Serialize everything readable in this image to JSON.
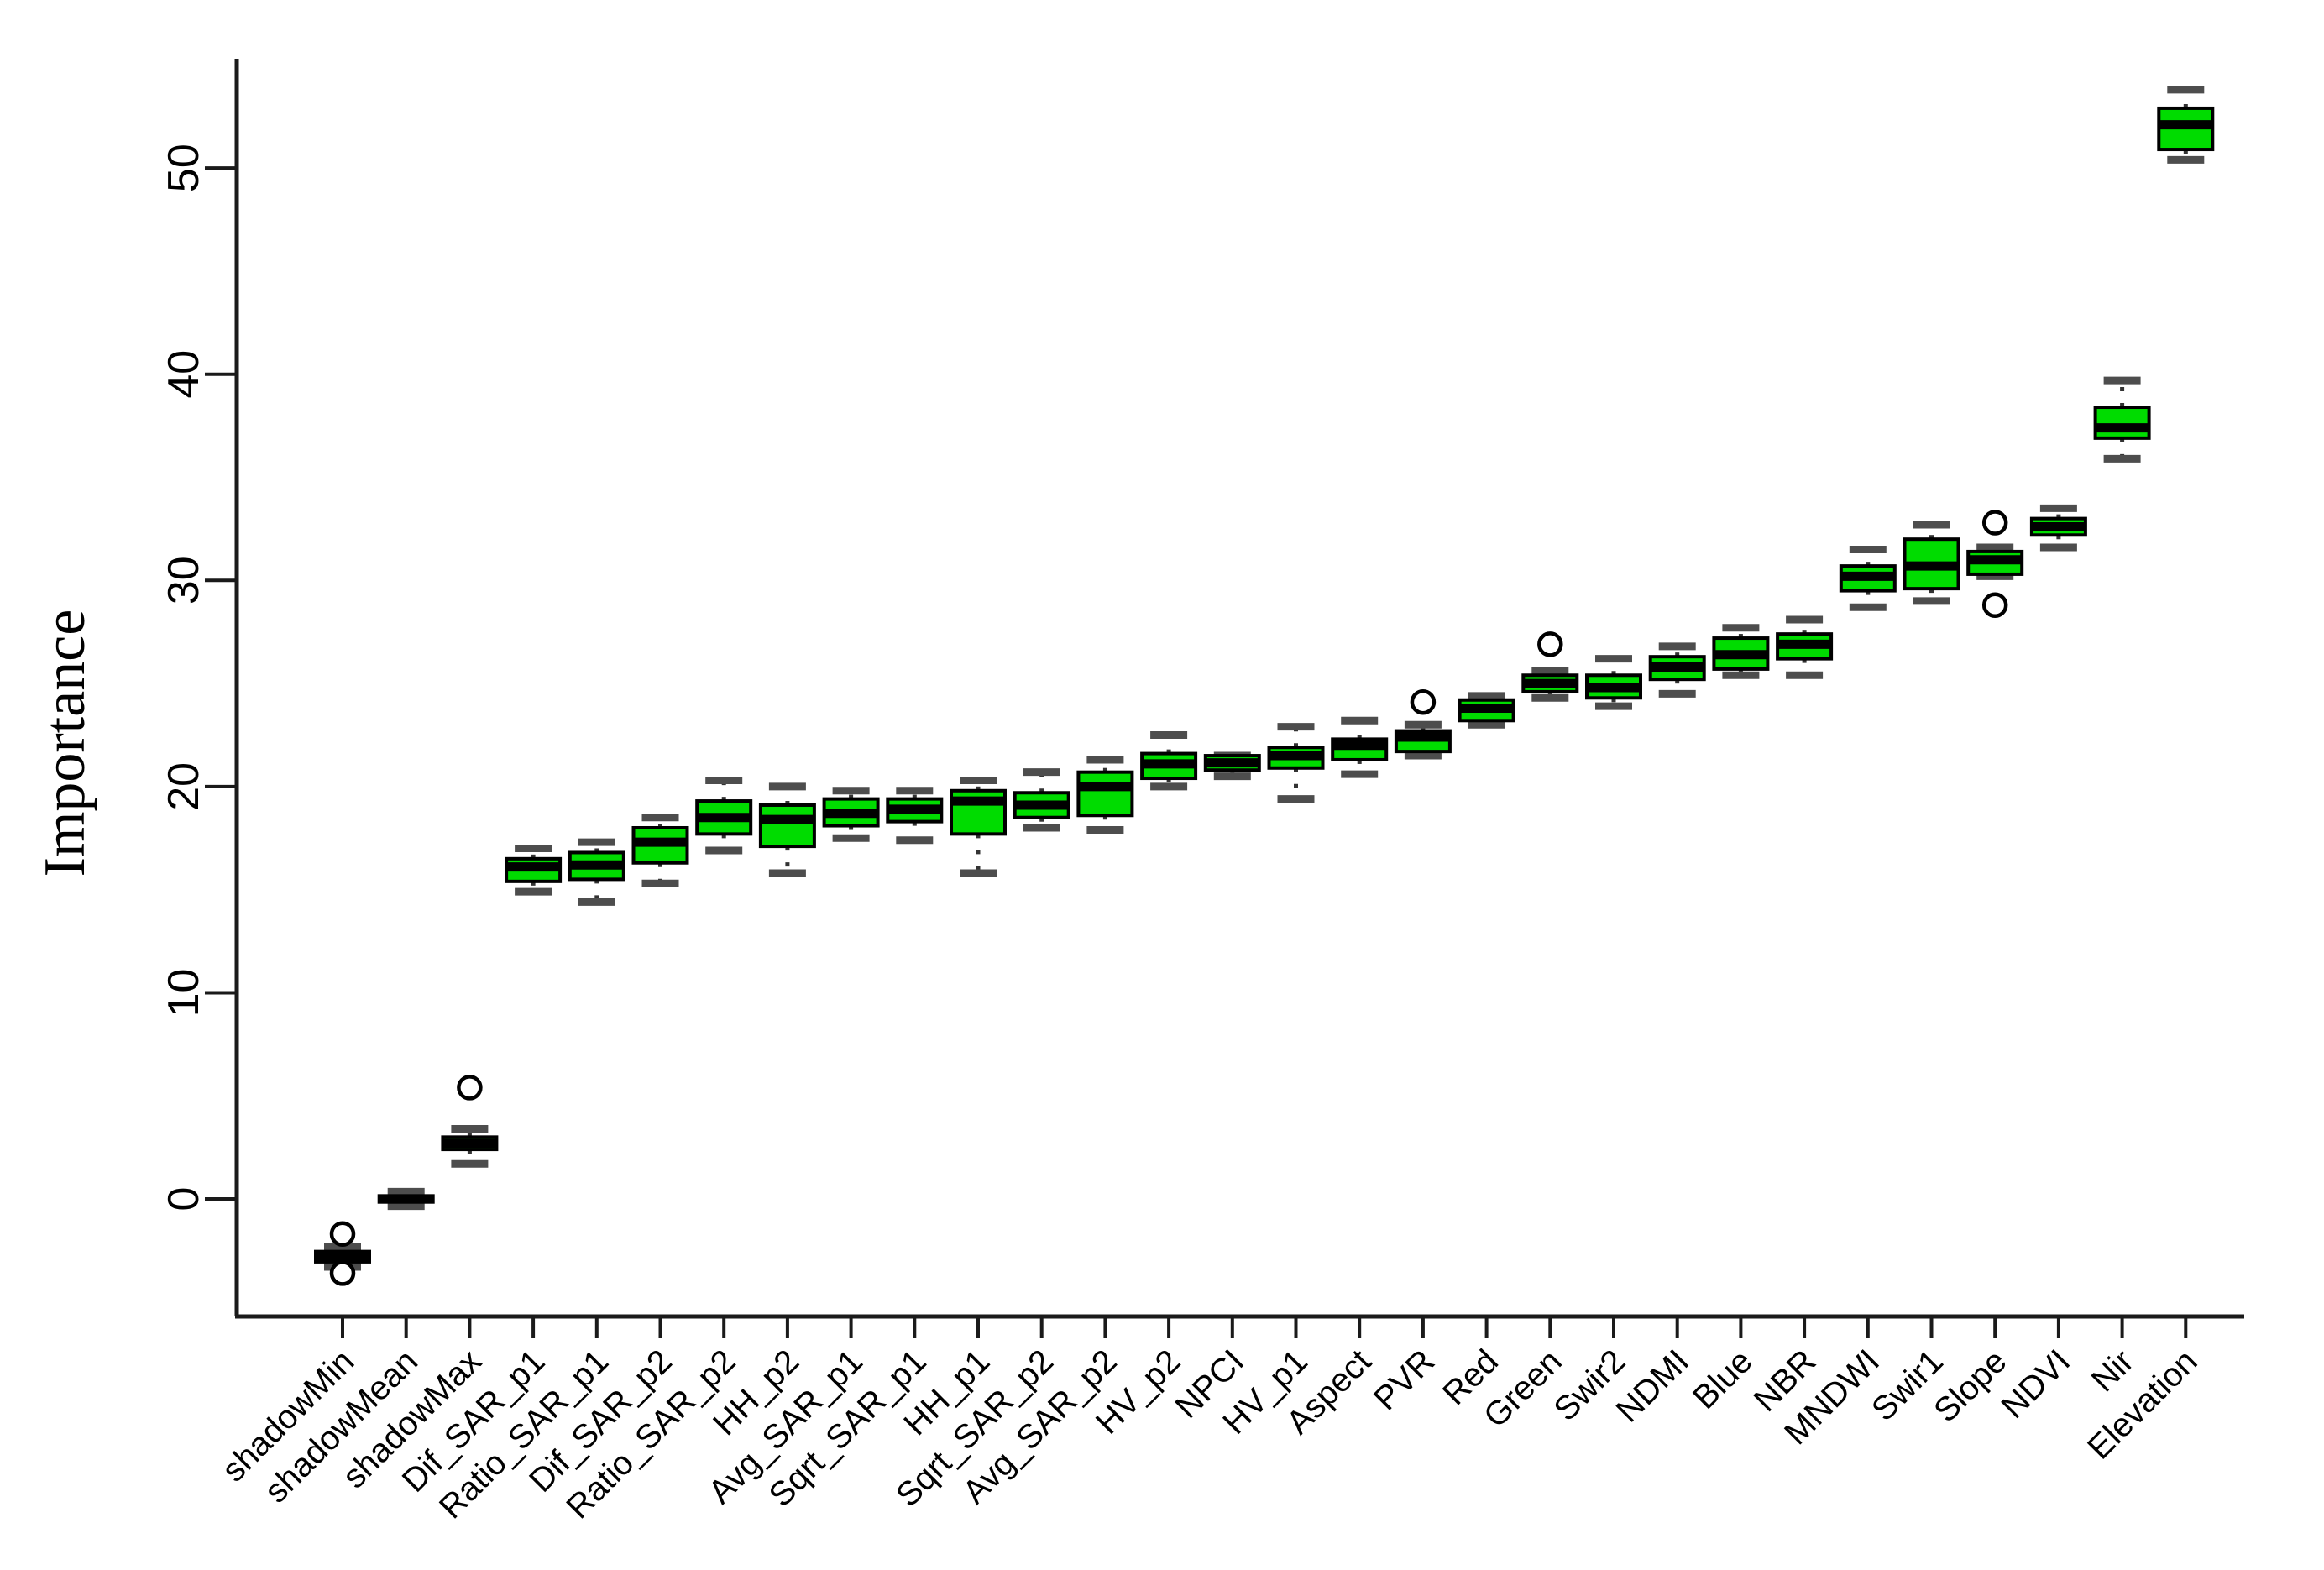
{
  "figure": {
    "background": "#ffffff"
  },
  "style": {
    "box_fill": "#00DC00",
    "box_border": "#000000",
    "median_color": "#000000",
    "whisker_cap_color": "#4d4d4d",
    "whisker_stem_color": "#333333",
    "axis_color": "#1a1a1a",
    "outlier_stroke": "#000000",
    "outlier_fill": "#ffffff",
    "label_color": "#000000"
  },
  "chart_data": {
    "type": "boxplot",
    "title": "",
    "xlabel": "",
    "ylabel": "Importance",
    "ylim": [
      -5.7,
      55.3
    ],
    "yticks": [
      0,
      10,
      20,
      30,
      40,
      50
    ],
    "grid": false,
    "legend": "none",
    "x_tick_label_rotation_deg": 45,
    "categories": [
      "shadowMin",
      "shadowMean",
      "shadowMax",
      "Dif_SAR_p1",
      "Ratio_SAR_p1",
      "Dif_SAR_p2",
      "Ratio_SAR_p2",
      "HH_p2",
      "Avg_SAR_p1",
      "Sqrt_SAR_p1",
      "HH_p1",
      "Sqrt_SAR_p2",
      "Avg_SAR_p2",
      "HV_p2",
      "NPCI",
      "HV_p1",
      "Aspect",
      "PVR",
      "Red",
      "Green",
      "Swir2",
      "NDMI",
      "Blue",
      "NBR",
      "MNDWI",
      "Swir1",
      "Slope",
      "NDVI",
      "Nir",
      "Elevation"
    ],
    "series": [
      {
        "name": "shadowMin",
        "median": -2.8,
        "q1": -3.05,
        "q3": -2.55,
        "whisker_low": -3.3,
        "whisker_high": -2.3,
        "outliers": [
          -1.7,
          -3.6
        ]
      },
      {
        "name": "shadowMean",
        "median": 0.0,
        "q1": -0.15,
        "q3": 0.15,
        "whisker_low": -0.35,
        "whisker_high": 0.35,
        "outliers": []
      },
      {
        "name": "shadowMax",
        "median": 2.7,
        "q1": 2.4,
        "q3": 3.0,
        "whisker_low": 1.7,
        "whisker_high": 3.4,
        "outliers": [
          5.4
        ]
      },
      {
        "name": "Dif_SAR_p1",
        "median": 16.1,
        "q1": 15.4,
        "q3": 16.5,
        "whisker_low": 14.9,
        "whisker_high": 17.0,
        "outliers": []
      },
      {
        "name": "Ratio_SAR_p1",
        "median": 16.2,
        "q1": 15.5,
        "q3": 16.8,
        "whisker_low": 14.4,
        "whisker_high": 17.3,
        "outliers": []
      },
      {
        "name": "Dif_SAR_p2",
        "median": 17.3,
        "q1": 16.3,
        "q3": 18.0,
        "whisker_low": 15.3,
        "whisker_high": 18.5,
        "outliers": []
      },
      {
        "name": "Ratio_SAR_p2",
        "median": 18.5,
        "q1": 17.7,
        "q3": 19.3,
        "whisker_low": 16.9,
        "whisker_high": 20.3,
        "outliers": []
      },
      {
        "name": "HH_p2",
        "median": 18.4,
        "q1": 17.1,
        "q3": 19.1,
        "whisker_low": 15.8,
        "whisker_high": 20.0,
        "outliers": []
      },
      {
        "name": "Avg_SAR_p1",
        "median": 18.7,
        "q1": 18.1,
        "q3": 19.4,
        "whisker_low": 17.5,
        "whisker_high": 19.8,
        "outliers": []
      },
      {
        "name": "Sqrt_SAR_p1",
        "median": 18.9,
        "q1": 18.3,
        "q3": 19.4,
        "whisker_low": 17.4,
        "whisker_high": 19.8,
        "outliers": []
      },
      {
        "name": "HH_p1",
        "median": 19.3,
        "q1": 17.7,
        "q3": 19.8,
        "whisker_low": 15.8,
        "whisker_high": 20.3,
        "outliers": []
      },
      {
        "name": "Sqrt_SAR_p2",
        "median": 19.1,
        "q1": 18.5,
        "q3": 19.7,
        "whisker_low": 18.0,
        "whisker_high": 20.7,
        "outliers": []
      },
      {
        "name": "Avg_SAR_p2",
        "median": 20.0,
        "q1": 18.6,
        "q3": 20.7,
        "whisker_low": 17.9,
        "whisker_high": 21.3,
        "outliers": []
      },
      {
        "name": "HV_p2",
        "median": 21.1,
        "q1": 20.4,
        "q3": 21.6,
        "whisker_low": 20.0,
        "whisker_high": 22.5,
        "outliers": []
      },
      {
        "name": "NPCI",
        "median": 21.15,
        "q1": 20.8,
        "q3": 21.5,
        "whisker_low": 20.5,
        "whisker_high": 21.5,
        "outliers": []
      },
      {
        "name": "HV_p1",
        "median": 21.5,
        "q1": 20.9,
        "q3": 21.9,
        "whisker_low": 19.4,
        "whisker_high": 22.9,
        "outliers": []
      },
      {
        "name": "Aspect",
        "median": 22.0,
        "q1": 21.3,
        "q3": 22.3,
        "whisker_low": 20.6,
        "whisker_high": 23.2,
        "outliers": []
      },
      {
        "name": "PVR",
        "median": 22.4,
        "q1": 21.7,
        "q3": 22.7,
        "whisker_low": 21.5,
        "whisker_high": 23.0,
        "outliers": [
          24.1
        ]
      },
      {
        "name": "Red",
        "median": 23.8,
        "q1": 23.2,
        "q3": 24.2,
        "whisker_low": 23.0,
        "whisker_high": 24.4,
        "outliers": []
      },
      {
        "name": "Green",
        "median": 25.0,
        "q1": 24.6,
        "q3": 25.4,
        "whisker_low": 24.3,
        "whisker_high": 25.6,
        "outliers": [
          26.9
        ]
      },
      {
        "name": "Swir2",
        "median": 24.8,
        "q1": 24.3,
        "q3": 25.4,
        "whisker_low": 23.9,
        "whisker_high": 26.2,
        "outliers": []
      },
      {
        "name": "NDMI",
        "median": 25.8,
        "q1": 25.2,
        "q3": 26.3,
        "whisker_low": 24.5,
        "whisker_high": 26.8,
        "outliers": []
      },
      {
        "name": "Blue",
        "median": 26.4,
        "q1": 25.7,
        "q3": 27.2,
        "whisker_low": 25.4,
        "whisker_high": 27.7,
        "outliers": []
      },
      {
        "name": "NBR",
        "median": 26.9,
        "q1": 26.2,
        "q3": 27.4,
        "whisker_low": 25.4,
        "whisker_high": 28.1,
        "outliers": []
      },
      {
        "name": "MNDWI",
        "median": 30.2,
        "q1": 29.5,
        "q3": 30.7,
        "whisker_low": 28.7,
        "whisker_high": 31.5,
        "outliers": []
      },
      {
        "name": "Swir1",
        "median": 30.7,
        "q1": 29.6,
        "q3": 32.0,
        "whisker_low": 29.0,
        "whisker_high": 32.7,
        "outliers": []
      },
      {
        "name": "Slope",
        "median": 31.0,
        "q1": 30.3,
        "q3": 31.4,
        "whisker_low": 30.2,
        "whisker_high": 31.6,
        "outliers": [
          32.8,
          28.8
        ]
      },
      {
        "name": "NDVI",
        "median": 32.6,
        "q1": 32.2,
        "q3": 33.0,
        "whisker_low": 31.6,
        "whisker_high": 33.5,
        "outliers": []
      },
      {
        "name": "Nir",
        "median": 37.4,
        "q1": 36.9,
        "q3": 38.4,
        "whisker_low": 35.9,
        "whisker_high": 39.7,
        "outliers": []
      },
      {
        "name": "Elevation",
        "median": 52.1,
        "q1": 50.9,
        "q3": 52.9,
        "whisker_low": 50.4,
        "whisker_high": 53.8,
        "outliers": []
      }
    ]
  }
}
